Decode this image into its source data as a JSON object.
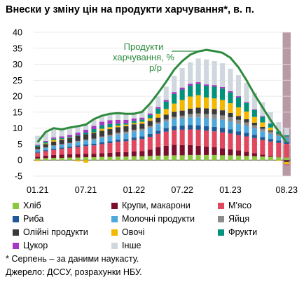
{
  "title": "Внески у зміну цін на продукти харчування*, в. п.",
  "footnote": "* Серпень – за даними наукасту.",
  "source": "Джерело: ДССУ, розрахунки НБУ.",
  "annotation": "Продукти харчування, % р/р",
  "chart_data": {
    "type": "bar",
    "stacked": true,
    "title": "Внески у зміну цін на продукти харчування*, в. п.",
    "ylabel": "",
    "xlabel": "",
    "ylim": [
      -5,
      40
    ],
    "y_ticks": [
      -5,
      0,
      5,
      10,
      15,
      20,
      25,
      30,
      35,
      40
    ],
    "grid": true,
    "legend_position": "bottom",
    "shaded_region": "08.23",
    "x_tick_labels": [
      "01.21",
      "07.21",
      "01.22",
      "07.22",
      "01.23",
      "08.23"
    ],
    "categories": [
      "01.21",
      "02.21",
      "03.21",
      "04.21",
      "05.21",
      "06.21",
      "07.21",
      "08.21",
      "09.21",
      "10.21",
      "11.21",
      "12.21",
      "01.22",
      "02.22",
      "03.22",
      "04.22",
      "05.22",
      "06.22",
      "07.22",
      "08.22",
      "09.22",
      "10.22",
      "11.22",
      "12.22",
      "01.23",
      "02.23",
      "03.23",
      "04.23",
      "05.23",
      "06.23",
      "07.23",
      "08.23"
    ],
    "series": [
      {
        "name": "Хліб",
        "color": "#8dc63f",
        "values": [
          0.5,
          0.6,
          0.7,
          0.7,
          0.8,
          0.8,
          0.9,
          0.9,
          1.0,
          1.0,
          1.1,
          1.1,
          1.2,
          1.2,
          1.3,
          1.4,
          1.4,
          1.5,
          1.5,
          1.6,
          1.6,
          1.6,
          1.6,
          1.5,
          1.5,
          1.4,
          1.3,
          1.2,
          1.1,
          1.0,
          0.9,
          0.8
        ]
      },
      {
        "name": "Крупи, макарони",
        "color": "#7b0f2b",
        "values": [
          0.6,
          0.8,
          0.9,
          1.0,
          1.0,
          1.1,
          1.1,
          1.1,
          1.2,
          1.3,
          1.4,
          1.4,
          1.5,
          1.6,
          2.0,
          2.6,
          3.1,
          3.3,
          3.2,
          3.1,
          2.9,
          2.6,
          2.4,
          2.2,
          1.9,
          1.6,
          1.3,
          1.0,
          0.6,
          0.3,
          0.1,
          -0.3
        ]
      },
      {
        "name": "М'ясо",
        "color": "#e0485f",
        "values": [
          1.2,
          1.4,
          1.6,
          1.8,
          2.0,
          2.2,
          2.4,
          2.6,
          2.8,
          3.0,
          3.2,
          3.4,
          3.6,
          3.8,
          4.0,
          4.2,
          4.4,
          4.6,
          4.8,
          4.9,
          5.0,
          5.0,
          5.0,
          5.0,
          4.9,
          4.8,
          4.8,
          4.7,
          4.6,
          4.5,
          4.4,
          4.3
        ]
      },
      {
        "name": "Риба",
        "color": "#1f5a96",
        "values": [
          0.3,
          0.3,
          0.4,
          0.4,
          0.4,
          0.5,
          0.5,
          0.5,
          0.6,
          0.6,
          0.7,
          0.7,
          0.8,
          0.8,
          0.9,
          1.0,
          1.1,
          1.2,
          1.3,
          1.4,
          1.4,
          1.4,
          1.4,
          1.4,
          1.3,
          1.2,
          1.1,
          1.0,
          0.9,
          0.8,
          0.7,
          0.6
        ]
      },
      {
        "name": "Молочні продукти",
        "color": "#4fa8dc",
        "values": [
          0.6,
          0.7,
          0.8,
          0.9,
          1.0,
          1.1,
          1.2,
          1.3,
          1.4,
          1.5,
          1.6,
          1.7,
          1.8,
          1.8,
          1.9,
          2.0,
          2.1,
          2.2,
          2.3,
          2.4,
          2.5,
          2.5,
          2.5,
          2.5,
          2.4,
          2.3,
          2.2,
          2.0,
          1.8,
          1.6,
          1.4,
          1.2
        ]
      },
      {
        "name": "Яйця",
        "color": "#8c8c8c",
        "values": [
          0.2,
          0.2,
          0.2,
          0.2,
          0.2,
          0.3,
          0.3,
          0.3,
          0.4,
          0.5,
          0.6,
          0.6,
          0.6,
          0.6,
          0.6,
          0.6,
          0.6,
          0.7,
          0.8,
          1.0,
          1.2,
          1.3,
          1.4,
          1.4,
          1.4,
          1.3,
          1.1,
          1.0,
          0.8,
          0.7,
          0.6,
          0.5
        ]
      },
      {
        "name": "Олійні продукти",
        "color": "#3a3a3a",
        "values": [
          0.8,
          1.0,
          1.2,
          1.4,
          1.5,
          1.6,
          1.7,
          1.8,
          1.8,
          1.8,
          1.7,
          1.7,
          1.7,
          1.6,
          1.6,
          1.5,
          1.5,
          1.6,
          1.6,
          1.7,
          1.8,
          1.8,
          1.7,
          1.6,
          1.4,
          1.2,
          1.0,
          0.8,
          0.6,
          0.4,
          0.2,
          -0.3
        ]
      },
      {
        "name": "Овочі",
        "color": "#f5b800",
        "values": [
          -0.3,
          0.2,
          0.5,
          0.2,
          0.1,
          -0.4,
          -0.8,
          0.2,
          0.6,
          0.6,
          0.5,
          0.5,
          0.4,
          0.6,
          0.8,
          1.2,
          1.8,
          2.6,
          3.3,
          3.8,
          3.9,
          3.4,
          3.3,
          3.2,
          3.0,
          2.7,
          2.4,
          1.8,
          1.4,
          0.9,
          -0.2,
          -0.8
        ]
      },
      {
        "name": "Фрукти",
        "color": "#00927a",
        "values": [
          0.4,
          0.5,
          0.4,
          0.3,
          0.3,
          0.2,
          0.5,
          1.0,
          1.1,
          1.0,
          0.6,
          0.4,
          0.6,
          0.7,
          1.0,
          1.6,
          2.3,
          3.0,
          3.3,
          3.4,
          3.5,
          3.6,
          3.7,
          3.6,
          3.4,
          3.1,
          2.7,
          2.2,
          1.8,
          1.2,
          0.7,
          0.4
        ]
      },
      {
        "name": "Цукор",
        "color": "#a639c4",
        "values": [
          0.2,
          0.3,
          0.4,
          0.5,
          0.6,
          0.8,
          0.9,
          1.0,
          1.1,
          1.2,
          1.2,
          1.1,
          0.8,
          0.6,
          0.5,
          0.5,
          0.5,
          0.6,
          0.6,
          0.6,
          0.6,
          0.5,
          0.5,
          0.5,
          0.4,
          0.4,
          0.3,
          0.2,
          0.2,
          0.1,
          0.0,
          -0.2
        ]
      },
      {
        "name": "Інше",
        "color": "#d0d7df",
        "values": [
          2.8,
          2.7,
          2.5,
          2.3,
          2.2,
          2.1,
          2.0,
          2.0,
          2.0,
          2.0,
          2.0,
          2.0,
          2.0,
          2.1,
          2.4,
          3.3,
          4.2,
          5.1,
          6.1,
          6.7,
          7.4,
          7.8,
          7.5,
          7.4,
          7.0,
          6.6,
          6.0,
          5.2,
          4.3,
          3.5,
          2.9,
          2.2
        ]
      }
    ],
    "line": {
      "name": "Продукти харчування, % р/р",
      "color": "#2e8b3e",
      "values": [
        5.6,
        8.8,
        10.0,
        9.6,
        10.2,
        10.6,
        11.1,
        12.8,
        13.9,
        14.5,
        14.7,
        14.5,
        14.5,
        15.1,
        17.7,
        21.0,
        24.5,
        28.3,
        31.0,
        33.0,
        34.0,
        34.5,
        34.1,
        33.6,
        32.0,
        29.0,
        25.0,
        20.5,
        16.5,
        12.5,
        9.0,
        5.5
      ]
    }
  }
}
